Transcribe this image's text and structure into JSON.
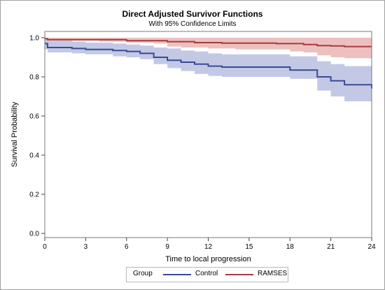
{
  "chart_data": {
    "type": "line",
    "title": "Direct Adjusted Survivor Functions",
    "subtitle": "With 95% Confidence Limits",
    "xlabel": "Time to local progression",
    "ylabel": "Survival Probability",
    "xlim": [
      0,
      24
    ],
    "ylim": [
      0.0,
      1.0
    ],
    "xticks": [
      0,
      3,
      6,
      9,
      12,
      15,
      18,
      21,
      24
    ],
    "yticks": [
      "0.0",
      "0.2",
      "0.4",
      "0.6",
      "0.8",
      "1.0"
    ],
    "step": true,
    "grid": false,
    "legend": {
      "title": "Group",
      "position": "bottom"
    },
    "series": [
      {
        "name": "Control",
        "color": "#3a4a93",
        "band_color": "#b9c0e0",
        "x": [
          0,
          0.2,
          2,
          3,
          5,
          6,
          7,
          8,
          9,
          10,
          11,
          12,
          13,
          18,
          20,
          21,
          22,
          24
        ],
        "y": [
          0.97,
          0.95,
          0.945,
          0.94,
          0.935,
          0.93,
          0.92,
          0.9,
          0.885,
          0.875,
          0.865,
          0.855,
          0.85,
          0.835,
          0.8,
          0.78,
          0.76,
          0.74
        ],
        "lower": [
          0.94,
          0.925,
          0.92,
          0.915,
          0.905,
          0.9,
          0.89,
          0.865,
          0.845,
          0.83,
          0.815,
          0.805,
          0.8,
          0.79,
          0.73,
          0.7,
          0.675,
          0.645
        ],
        "upper": [
          0.99,
          0.985,
          0.98,
          0.975,
          0.97,
          0.965,
          0.96,
          0.95,
          0.945,
          0.935,
          0.93,
          0.92,
          0.915,
          0.905,
          0.88,
          0.865,
          0.855,
          0.855
        ]
      },
      {
        "name": "RAMSES",
        "color": "#a83a3a",
        "band_color": "#eab5b5",
        "x": [
          0,
          0.2,
          4,
          6,
          8,
          9,
          10,
          11,
          12,
          13,
          14,
          17,
          18,
          19,
          20,
          21,
          22,
          24
        ],
        "y": [
          0.995,
          0.99,
          0.99,
          0.985,
          0.985,
          0.98,
          0.98,
          0.975,
          0.975,
          0.972,
          0.972,
          0.97,
          0.97,
          0.965,
          0.96,
          0.958,
          0.955,
          0.955
        ],
        "lower": [
          0.99,
          0.985,
          0.98,
          0.975,
          0.97,
          0.955,
          0.95,
          0.95,
          0.945,
          0.945,
          0.94,
          0.94,
          0.93,
          0.925,
          0.91,
          0.9,
          0.895,
          0.89
        ],
        "upper": [
          1.0,
          1.0,
          1.0,
          1.0,
          1.0,
          1.0,
          1.0,
          1.0,
          1.0,
          1.0,
          1.0,
          1.0,
          1.0,
          1.0,
          1.0,
          1.0,
          1.0,
          1.0
        ]
      }
    ]
  }
}
